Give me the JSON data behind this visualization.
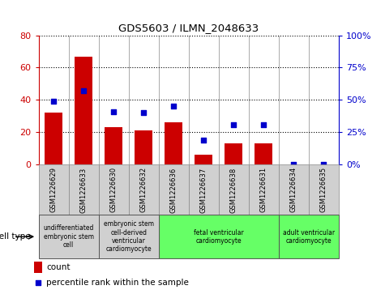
{
  "title": "GDS5603 / ILMN_2048633",
  "samples": [
    "GSM1226629",
    "GSM1226633",
    "GSM1226630",
    "GSM1226632",
    "GSM1226636",
    "GSM1226637",
    "GSM1226638",
    "GSM1226631",
    "GSM1226634",
    "GSM1226635"
  ],
  "counts": [
    32,
    67,
    23,
    21,
    26,
    6,
    13,
    13,
    0,
    0
  ],
  "percentiles": [
    49,
    57,
    41,
    40,
    45,
    19,
    31,
    31,
    0,
    0
  ],
  "ylim_left": [
    0,
    80
  ],
  "ylim_right": [
    0,
    100
  ],
  "yticks_left": [
    0,
    20,
    40,
    60,
    80
  ],
  "yticks_right": [
    0,
    25,
    50,
    75,
    100
  ],
  "bar_color": "#cc0000",
  "dot_color": "#0000cc",
  "cell_types": [
    {
      "label": "undifferentiated\nembryonic stem\ncell",
      "span": [
        0,
        2
      ],
      "color": "#d0d0d0"
    },
    {
      "label": "embryonic stem\ncell-derived\nventricular\ncardiomyocyte",
      "span": [
        2,
        4
      ],
      "color": "#d0d0d0"
    },
    {
      "label": "fetal ventricular\ncardiomyocyte",
      "span": [
        4,
        8
      ],
      "color": "#66ff66"
    },
    {
      "label": "adult ventricular\ncardiomyocyte",
      "span": [
        8,
        10
      ],
      "color": "#66ff66"
    }
  ],
  "col_bg_color": "#d0d0d0",
  "bg_color": "#ffffff",
  "legend_count_color": "#cc0000",
  "legend_dot_color": "#0000cc"
}
